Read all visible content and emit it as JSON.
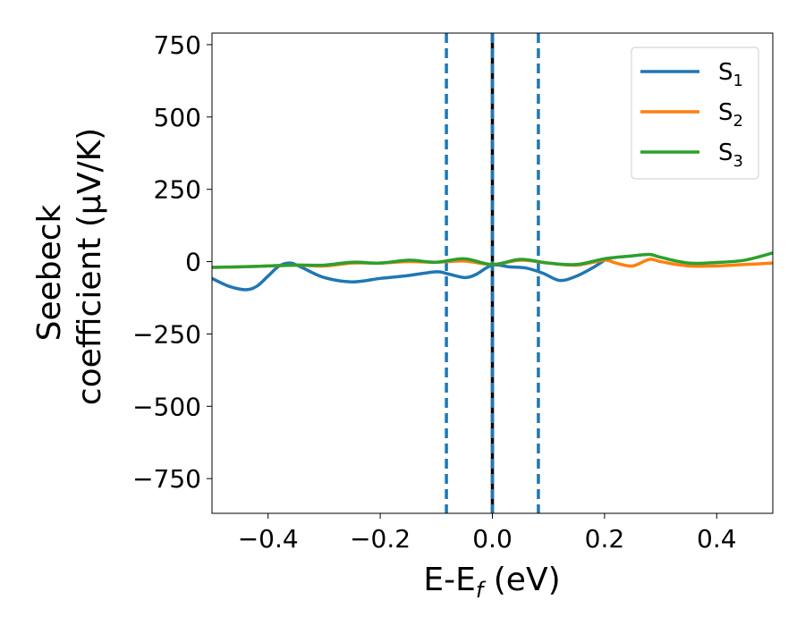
{
  "chart_data": {
    "type": "line",
    "xlabel_main": "E-E",
    "xlabel_sub": "f",
    "xlabel_unit": " (eV)",
    "ylabel_line1": "Seebeck",
    "ylabel_line2": "coefficient  (μV/K)",
    "xlim": [
      -0.5,
      0.5
    ],
    "ylim": [
      -870,
      790
    ],
    "xticks": [
      -0.4,
      -0.2,
      0.0,
      0.2,
      0.4
    ],
    "xtick_labels": [
      "−0.4",
      "−0.2",
      "0.0",
      "0.2",
      "0.4"
    ],
    "yticks": [
      750,
      500,
      250,
      0,
      -250,
      -500,
      -750
    ],
    "ytick_labels": [
      "750",
      "500",
      "250",
      "0",
      "−250",
      "−500",
      "−750"
    ],
    "grid": false,
    "legend_position": "top-right",
    "vlines": [
      {
        "x": -0.082,
        "style": "dashed",
        "color": "#1f77b4"
      },
      {
        "x": 0.0,
        "style": "solid",
        "color": "#000000"
      },
      {
        "x": 0.0,
        "style": "dashed",
        "color": "#1f77b4"
      },
      {
        "x": 0.082,
        "style": "dashed",
        "color": "#1f77b4"
      }
    ],
    "series": [
      {
        "name": "S",
        "sub": "1",
        "color": "#1f77b4",
        "x": [
          -0.5,
          -0.47,
          -0.44,
          -0.42,
          -0.4,
          -0.38,
          -0.36,
          -0.34,
          -0.3,
          -0.25,
          -0.2,
          -0.15,
          -0.1,
          -0.08,
          -0.05,
          -0.03,
          0.0,
          0.03,
          0.06,
          0.09,
          0.12,
          0.15,
          0.18,
          0.2
        ],
        "y": [
          -58,
          -85,
          -97,
          -85,
          -50,
          -15,
          -5,
          -20,
          -55,
          -70,
          -58,
          -48,
          -35,
          -42,
          -55,
          -45,
          -12,
          -18,
          -22,
          -40,
          -65,
          -50,
          -20,
          5
        ]
      },
      {
        "name": "S",
        "sub": "2",
        "color": "#ff7f0e",
        "x": [
          -0.5,
          -0.45,
          -0.4,
          -0.35,
          -0.3,
          -0.25,
          -0.2,
          -0.15,
          -0.1,
          -0.05,
          0.0,
          0.05,
          0.1,
          0.15,
          0.2,
          0.22,
          0.25,
          0.28,
          0.3,
          0.35,
          0.4,
          0.45,
          0.5
        ],
        "y": [
          -20,
          -18,
          -15,
          -12,
          -15,
          -5,
          -5,
          0,
          -2,
          2,
          -10,
          5,
          -5,
          -12,
          5,
          -5,
          -15,
          8,
          0,
          -15,
          -15,
          -10,
          -5
        ]
      },
      {
        "name": "S",
        "sub": "3",
        "color": "#2ca02c",
        "x": [
          -0.5,
          -0.45,
          -0.4,
          -0.35,
          -0.3,
          -0.25,
          -0.2,
          -0.15,
          -0.1,
          -0.05,
          0.0,
          0.05,
          0.1,
          0.15,
          0.2,
          0.25,
          0.28,
          0.3,
          0.35,
          0.4,
          0.45,
          0.5
        ],
        "y": [
          -20,
          -18,
          -15,
          -12,
          -12,
          -2,
          -5,
          5,
          -2,
          10,
          -10,
          8,
          -5,
          -10,
          10,
          20,
          25,
          15,
          -5,
          -3,
          5,
          30
        ]
      }
    ]
  }
}
